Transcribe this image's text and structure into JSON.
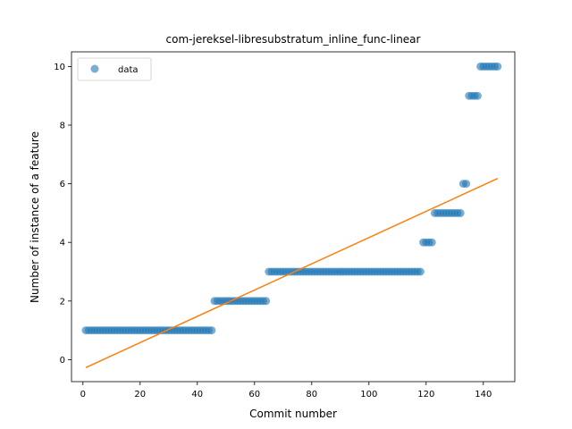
{
  "chart_data": {
    "type": "scatter",
    "title": "com-jereksel-libresubstratum_inline_func-linear",
    "xlabel": "Commit number",
    "ylabel": "Number of instance of a feature",
    "xlim": [
      -4,
      151
    ],
    "ylim": [
      -0.75,
      10.5
    ],
    "xticks": [
      0,
      20,
      40,
      60,
      80,
      100,
      120,
      140
    ],
    "yticks": [
      0,
      2,
      4,
      6,
      8,
      10
    ],
    "grid": false,
    "legend": {
      "position": "top-left",
      "entries": [
        "data"
      ]
    },
    "colors": {
      "points": "#1f77b4",
      "fit_line": "#ff7f0e"
    },
    "series": [
      {
        "name": "data",
        "kind": "scatter",
        "segments": [
          {
            "x_from": 1,
            "x_to": 45,
            "y": 1
          },
          {
            "x_from": 46,
            "x_to": 64,
            "y": 2
          },
          {
            "x_from": 65,
            "x_to": 118,
            "y": 3
          },
          {
            "x_from": 119,
            "x_to": 122,
            "y": 4
          },
          {
            "x_from": 123,
            "x_to": 132,
            "y": 5
          },
          {
            "x_from": 133,
            "x_to": 134,
            "y": 6
          },
          {
            "x_from": 135,
            "x_to": 138,
            "y": 9
          },
          {
            "x_from": 139,
            "x_to": 145,
            "y": 10
          }
        ]
      },
      {
        "kind": "line",
        "x": [
          1,
          145
        ],
        "y": [
          -0.27,
          6.18
        ]
      }
    ]
  }
}
